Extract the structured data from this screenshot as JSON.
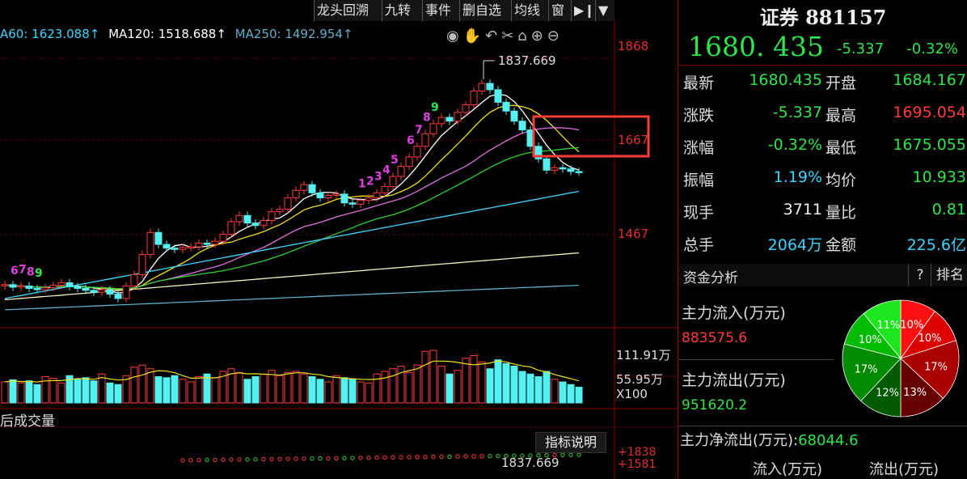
{
  "toolbar": {
    "buttons": [
      "龙头回溯",
      "九转",
      "事件",
      "删自选",
      "均线",
      "窗"
    ],
    "nav_icon": "play-next-icon",
    "dropdown_icon": "caret-down-icon"
  },
  "ma_legend": [
    {
      "text": "A60: 1623.088↑",
      "color": "#3fd4ff"
    },
    {
      "text": "MA120: 1518.688↑",
      "color": "#ffffff"
    },
    {
      "text": "MA250: 1492.954↑",
      "color": "#5fb0c8"
    }
  ],
  "tool_icons": [
    "eye-icon",
    "hand-icon",
    "undo-icon",
    "scissors-icon",
    "lock-icon",
    "zoom-in-icon",
    "zoom-out-icon"
  ],
  "tool_glyphs": "◉✋↶✂⌂⊕⊖",
  "price_axis": [
    "1868",
    "1667",
    "1467"
  ],
  "volume_axis": [
    "111.91万",
    "55.95万",
    "X100"
  ],
  "volume_panel_label": "后成交量",
  "indicator_button": "指标说明",
  "indicator_axis": [
    "+1838",
    "+1581"
  ],
  "indicator_peak": "1837.669",
  "chart_data": {
    "type": "candlestick",
    "peak_label": "1837.669",
    "td_counts": [
      {
        "label": "6",
        "color": "#e040e0"
      },
      {
        "label": "7",
        "color": "#e040e0"
      },
      {
        "label": "8",
        "color": "#e040e0"
      },
      {
        "label": "9",
        "color": "#2ee64a"
      },
      {
        "label": "1",
        "color": "#e040e0"
      },
      {
        "label": "2",
        "color": "#e040e0"
      },
      {
        "label": "3",
        "color": "#e040e0"
      },
      {
        "label": "4",
        "color": "#e040e0"
      },
      {
        "label": "5",
        "color": "#e040e0"
      },
      {
        "label": "6",
        "color": "#e040e0"
      },
      {
        "label": "7",
        "color": "#e040e0"
      },
      {
        "label": "8",
        "color": "#e040e0"
      },
      {
        "label": "9",
        "color": "#2ee64a"
      }
    ],
    "closes": [
      1502,
      1498,
      1500,
      1496,
      1494,
      1497,
      1501,
      1505,
      1499,
      1496,
      1493,
      1490,
      1494,
      1487,
      1480,
      1500,
      1518,
      1550,
      1585,
      1566,
      1560,
      1558,
      1561,
      1562,
      1568,
      1566,
      1571,
      1582,
      1602,
      1612,
      1600,
      1596,
      1604,
      1618,
      1622,
      1640,
      1652,
      1661,
      1648,
      1640,
      1644,
      1646,
      1632,
      1630,
      1636,
      1640,
      1648,
      1658,
      1674,
      1690,
      1705,
      1722,
      1742,
      1758,
      1768,
      1762,
      1776,
      1788,
      1810,
      1822,
      1812,
      1792,
      1778,
      1762,
      1748,
      1722,
      1702,
      1684,
      1688,
      1686,
      1682,
      1681
    ],
    "volumes": [
      40,
      44,
      38,
      42,
      35,
      50,
      47,
      38,
      52,
      45,
      48,
      42,
      55,
      38,
      35,
      52,
      68,
      72,
      65,
      50,
      48,
      52,
      45,
      40,
      50,
      55,
      48,
      60,
      65,
      58,
      45,
      50,
      55,
      62,
      52,
      58,
      60,
      55,
      50,
      45,
      40,
      52,
      48,
      45,
      40,
      38,
      55,
      60,
      65,
      70,
      58,
      72,
      98,
      100,
      70,
      55,
      62,
      85,
      90,
      78,
      65,
      82,
      75,
      70,
      60,
      55,
      50,
      60,
      45,
      40,
      35,
      30
    ],
    "ylim": [
      1440,
      1880
    ]
  },
  "quote": {
    "title": "证券 881157",
    "price": "1680. 435",
    "change": "-5.337",
    "change_pct": "-0.32%",
    "rows": [
      {
        "k1": "最新",
        "v1": "1680.435",
        "c1": "g",
        "k2": "开盘",
        "v2": "1684.167",
        "c2": "g"
      },
      {
        "k1": "涨跌",
        "v1": "-5.337",
        "c1": "g",
        "k2": "最高",
        "v2": "1695.054",
        "c2": "r"
      },
      {
        "k1": "涨幅",
        "v1": "-0.32%",
        "c1": "g",
        "k2": "最低",
        "v2": "1675.055",
        "c2": "g"
      },
      {
        "k1": "振幅",
        "v1": "1.19%",
        "c1": "c",
        "k2": "均价",
        "v2": "10.933",
        "c2": "g"
      },
      {
        "k1": "现手",
        "v1": "3711",
        "c1": "w",
        "k2": "量比",
        "v2": "0.81",
        "c2": "g"
      },
      {
        "k1": "总手",
        "v1": "2064万",
        "c1": "c",
        "k2": "金额",
        "v2": "225.6亿",
        "c2": "c"
      }
    ]
  },
  "fund": {
    "header": "资金分析",
    "help": "?",
    "rank": "排名",
    "inflow_label": "主力流入(万元)",
    "inflow_value": "883575.6",
    "outflow_label": "主力流出(万元)",
    "outflow_value": "951620.2",
    "net_label": "主力净流出(万元):",
    "net_value": "68044.6",
    "col_in": "流入(万元)",
    "col_out": "流出(万元)",
    "pie": [
      {
        "label": "10%",
        "value": 10,
        "color": "#ff1010"
      },
      {
        "label": "10%",
        "value": 10,
        "color": "#dd0000"
      },
      {
        "label": "17%",
        "value": 17,
        "color": "#aa0000"
      },
      {
        "label": "13%",
        "value": 13,
        "color": "#660000"
      },
      {
        "label": "12%",
        "value": 12,
        "color": "#005a00"
      },
      {
        "label": "17%",
        "value": 17,
        "color": "#008a00"
      },
      {
        "label": "10%",
        "value": 10,
        "color": "#00bb00"
      },
      {
        "label": "11%",
        "value": 11,
        "color": "#1ee61e"
      }
    ]
  }
}
